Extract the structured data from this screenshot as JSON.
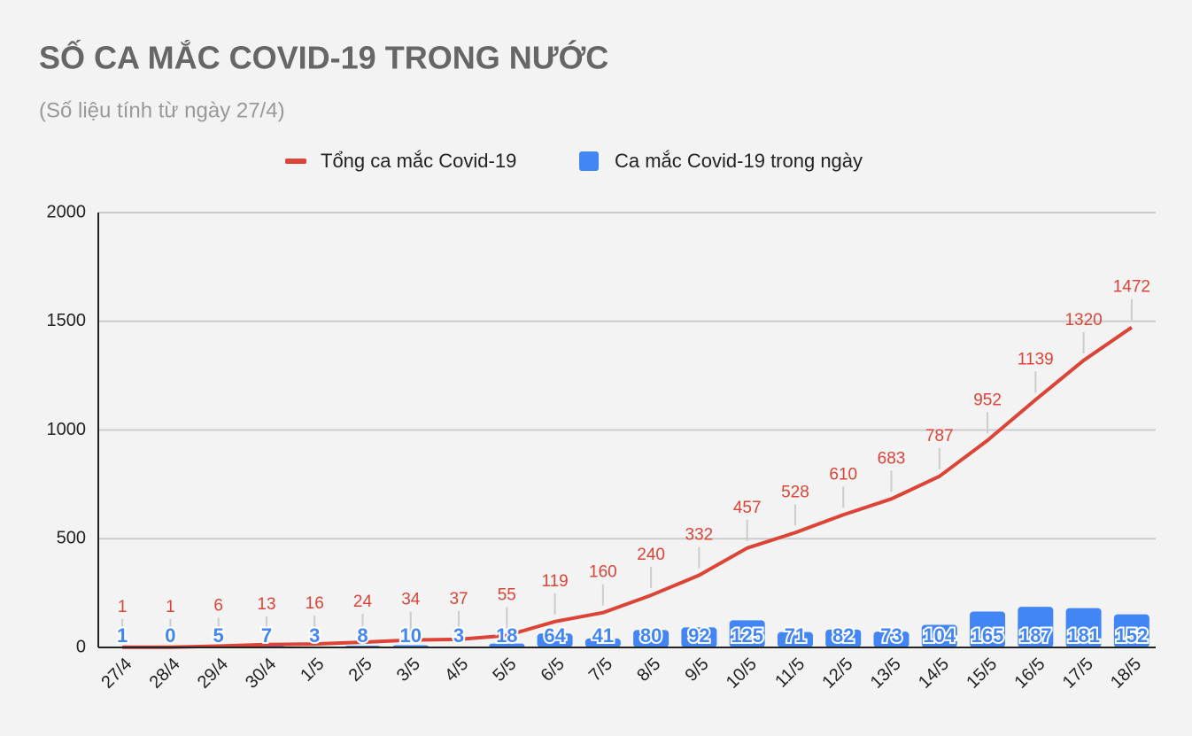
{
  "chart_data": {
    "type": "combo",
    "title": "SỐ CA MẮC COVID-19 TRONG NƯỚC",
    "subtitle": "(Số liệu tính từ ngày 27/4)",
    "categories": [
      "27/4",
      "28/4",
      "29/4",
      "30/4",
      "1/5",
      "2/5",
      "3/5",
      "4/5",
      "5/5",
      "6/5",
      "7/5",
      "8/5",
      "9/5",
      "10/5",
      "11/5",
      "12/5",
      "13/5",
      "14/5",
      "15/5",
      "16/5",
      "17/5",
      "18/5"
    ],
    "series": [
      {
        "name": "Tổng ca mắc Covid-19",
        "type": "line",
        "color": "#db4437",
        "values": [
          1,
          1,
          6,
          13,
          16,
          24,
          34,
          37,
          55,
          119,
          160,
          240,
          332,
          457,
          528,
          610,
          683,
          787,
          952,
          1139,
          1320,
          1472
        ]
      },
      {
        "name": "Ca mắc Covid-19 trong ngày",
        "type": "bar",
        "color": "#4285f4",
        "values": [
          1,
          0,
          5,
          7,
          3,
          8,
          10,
          3,
          18,
          64,
          41,
          80,
          92,
          125,
          71,
          82,
          73,
          104,
          165,
          187,
          181,
          152
        ]
      }
    ],
    "ylim": [
      0,
      2000
    ],
    "yticks": [
      0,
      500,
      1000,
      1500,
      2000
    ],
    "grid": true
  }
}
